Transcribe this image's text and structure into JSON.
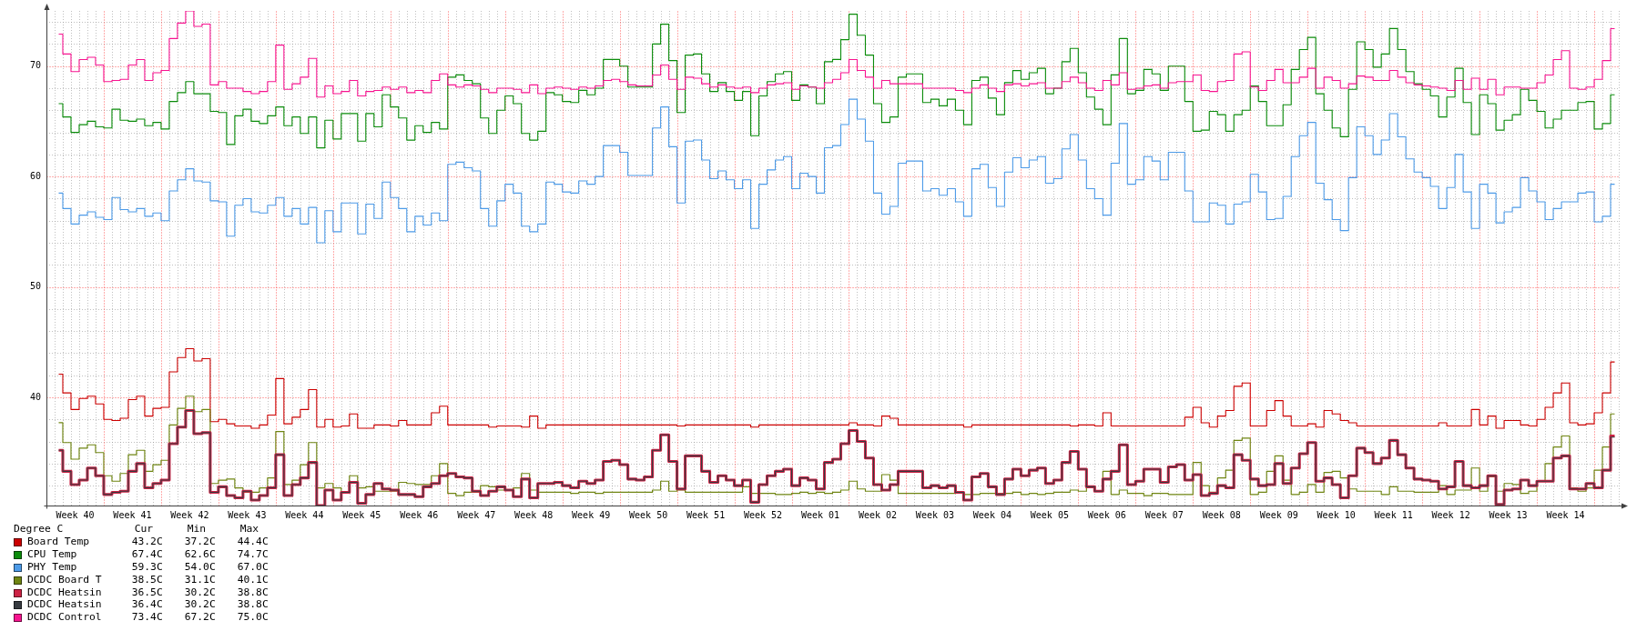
{
  "chart_data": {
    "type": "step",
    "legend_title": "Degree C",
    "legend": "bottom left",
    "grid": true,
    "ylim": [
      30.2,
      75
    ],
    "yticks": [
      {
        "value": 32,
        "label": null
      },
      {
        "value": 34,
        "label": null
      },
      {
        "value": 36,
        "label": null
      },
      {
        "value": 38,
        "label": null
      },
      40,
      {
        "value": 42,
        "label": null
      },
      {
        "value": 44,
        "label": null
      },
      {
        "value": 46,
        "label": null
      },
      {
        "value": 48,
        "label": null
      },
      50,
      {
        "value": 52,
        "label": null
      },
      {
        "value": 54,
        "label": null
      },
      {
        "value": 56,
        "label": null
      },
      {
        "value": 58,
        "label": null
      },
      60,
      {
        "value": 62,
        "label": null
      },
      {
        "value": 64,
        "label": null
      },
      {
        "value": 66,
        "label": null
      },
      {
        "value": 68,
        "label": null
      },
      70,
      {
        "value": 72,
        "label": null
      },
      {
        "value": 74,
        "label": null
      }
    ],
    "categories": [
      null,
      null,
      null,
      "Week 40",
      null,
      null,
      null,
      null,
      null,
      null,
      "Week 41",
      null,
      null,
      null,
      null,
      null,
      null,
      "Week 42",
      null,
      null,
      null,
      null,
      null,
      null,
      "Week 43",
      null,
      null,
      null,
      null,
      null,
      null,
      "Week 44",
      null,
      null,
      null,
      null,
      null,
      null,
      "Week 45",
      null,
      null,
      null,
      null,
      null,
      null,
      "Week 46",
      null,
      null,
      null,
      null,
      null,
      null,
      "Week 47",
      null,
      null,
      null,
      null,
      null,
      null,
      "Week 48",
      null,
      null,
      null,
      null,
      null,
      null,
      "Week 49",
      null,
      null,
      null,
      null,
      null,
      null,
      "Week 50",
      null,
      null,
      null,
      null,
      null,
      null,
      "Week 51",
      null,
      null,
      null,
      null,
      null,
      null,
      "Week 52",
      null,
      null,
      null,
      null,
      null,
      null,
      "Week 01",
      null,
      null,
      null,
      null,
      null,
      null,
      "Week 02",
      null,
      null,
      null,
      null,
      null,
      null,
      "Week 03",
      null,
      null,
      null,
      null,
      null,
      null,
      "Week 04",
      null,
      null,
      null,
      null,
      null,
      null,
      "Week 05",
      null,
      null,
      null,
      null,
      null,
      null,
      "Week 06",
      null,
      null,
      null,
      null,
      null,
      null,
      "Week 07",
      null,
      null,
      null,
      null,
      null,
      null,
      "Week 08",
      null,
      null,
      null,
      null,
      null,
      null,
      "Week 09",
      null,
      null,
      null,
      null,
      null,
      null,
      "Week 10",
      null,
      null,
      null,
      null,
      null,
      null,
      "Week 11",
      null,
      null,
      null,
      null,
      null,
      null,
      "Week 12",
      null,
      null,
      null,
      null,
      null,
      null,
      "Week 13",
      null,
      null,
      null,
      null,
      null,
      null,
      "Week 14",
      null,
      null,
      null,
      null,
      null,
      null
    ],
    "series": [
      {
        "name": "Board Temp",
        "color": "#cc0000",
        "values": [
          null,
          42.1,
          40.4,
          38.9,
          39.9,
          40.1,
          39.4,
          38.0,
          37.9,
          38.1,
          39.8,
          40.1,
          38.3,
          39.0,
          39.1,
          42.3,
          43.6,
          44.4,
          43.3,
          43.5,
          37.8,
          38.0,
          37.6,
          37.4,
          37.4,
          37.2,
          37.5,
          38.4,
          41.7,
          37.6,
          38.2,
          38.9,
          40.7,
          37.3,
          38.0,
          37.3,
          37.4,
          38.5,
          37.2,
          37.2,
          37.5,
          37.5,
          37.4,
          37.9,
          37.5,
          37.5,
          37.5,
          38.6,
          39.2,
          37.5,
          37.5,
          37.5,
          37.5,
          37.5,
          37.3,
          37.4,
          37.4,
          37.4,
          37.3,
          38.3,
          37.2,
          37.5,
          37.5,
          37.5,
          37.5,
          37.5,
          37.5,
          37.5,
          37.5,
          37.5,
          37.5,
          37.5,
          37.5,
          37.5,
          37.5,
          37.5,
          37.5,
          37.4,
          37.5,
          37.5,
          37.5,
          37.5,
          37.5,
          37.5,
          37.5,
          37.5,
          37.3,
          37.5,
          37.5,
          37.5,
          37.5,
          37.5,
          37.5,
          37.5,
          37.5,
          37.5,
          37.5,
          37.5,
          37.7,
          37.5,
          37.5,
          37.4,
          38.3,
          38.1,
          37.5,
          37.5,
          37.5,
          37.5,
          37.5,
          37.5,
          37.5,
          37.5,
          37.3,
          37.5,
          37.5,
          37.5,
          37.5,
          37.5,
          37.5,
          37.5,
          37.5,
          37.5,
          37.5,
          37.5,
          37.5,
          37.4,
          37.5,
          37.5,
          37.4,
          38.6,
          37.4,
          37.4,
          37.4,
          37.4,
          37.4,
          37.4,
          37.4,
          37.4,
          37.4,
          38.2,
          39.1,
          37.7,
          37.3,
          38.3,
          38.8,
          41.0,
          41.3,
          37.4,
          37.4,
          38.8,
          39.7,
          38.3,
          37.4,
          37.4,
          37.6,
          37.3,
          38.8,
          38.5,
          37.9,
          37.7,
          37.4,
          37.4,
          37.4,
          37.4,
          37.4,
          37.4,
          37.4,
          37.4,
          37.4,
          37.4,
          37.7,
          37.4,
          37.4,
          37.4,
          38.9,
          37.5,
          38.3,
          37.2,
          37.9,
          37.9,
          37.5,
          37.4,
          38.0,
          39.1,
          40.4,
          41.3,
          37.7,
          37.5,
          37.6,
          38.6,
          40.4,
          43.2
        ]
      },
      {
        "name": "CPU Temp",
        "color": "#0b8c0b",
        "values": [
          null,
          66.6,
          65.4,
          64.0,
          64.7,
          65.0,
          64.5,
          64.4,
          66.1,
          65.1,
          65.0,
          65.2,
          64.6,
          64.9,
          64.3,
          66.8,
          67.6,
          68.6,
          67.5,
          67.5,
          65.9,
          65.8,
          62.9,
          65.5,
          66.1,
          65.0,
          64.8,
          65.5,
          66.3,
          64.6,
          65.4,
          63.9,
          65.4,
          62.6,
          65.1,
          63.4,
          65.7,
          65.7,
          63.2,
          65.7,
          64.5,
          67.4,
          66.3,
          65.3,
          63.3,
          64.6,
          64.0,
          64.9,
          64.3,
          69.0,
          69.2,
          68.7,
          68.4,
          65.3,
          63.9,
          66.0,
          67.3,
          66.6,
          63.9,
          63.3,
          64.1,
          67.6,
          67.4,
          66.8,
          66.7,
          67.8,
          67.4,
          68.0,
          70.6,
          70.6,
          70.0,
          68.1,
          68.1,
          68.1,
          72.0,
          73.8,
          70.5,
          65.8,
          71.0,
          71.1,
          69.3,
          67.7,
          68.5,
          67.7,
          66.9,
          67.7,
          63.7,
          67.3,
          68.6,
          69.3,
          69.5,
          66.9,
          68.3,
          68.1,
          66.6,
          70.4,
          70.6,
          72.4,
          74.7,
          72.8,
          71.0,
          66.6,
          64.9,
          65.4,
          69.0,
          69.3,
          69.3,
          66.7,
          67.0,
          66.4,
          67.0,
          66.0,
          64.7,
          68.7,
          69.0,
          67.1,
          65.6,
          68.5,
          69.6,
          68.8,
          69.4,
          69.8,
          67.5,
          68.0,
          70.4,
          71.6,
          69.4,
          67.2,
          66.1,
          64.7,
          69.2,
          72.5,
          67.5,
          67.8,
          69.7,
          69.3,
          67.8,
          70.0,
          70.0,
          66.8,
          64.1,
          64.2,
          65.9,
          65.6,
          64.1,
          65.6,
          66.0,
          68.2,
          66.8,
          64.6,
          64.6,
          66.5,
          69.7,
          71.5,
          72.6,
          67.5,
          66.0,
          64.4,
          63.6,
          67.9,
          72.2,
          71.5,
          69.9,
          71.1,
          73.4,
          71.5,
          69.5,
          68.4,
          67.9,
          67.3,
          65.4,
          67.2,
          69.8,
          66.7,
          63.8,
          67.4,
          66.6,
          64.2,
          65.1,
          65.6,
          67.9,
          66.9,
          65.9,
          64.4,
          65.2,
          66.0,
          66.0,
          66.7,
          66.8,
          64.3,
          64.8,
          67.4
        ]
      },
      {
        "name": "PHY Temp",
        "color": "#4d9be8",
        "values": [
          null,
          58.5,
          57.1,
          55.7,
          56.5,
          56.8,
          56.3,
          56.1,
          58.1,
          57.0,
          56.8,
          57.1,
          56.4,
          56.7,
          56.0,
          58.7,
          59.7,
          60.7,
          59.6,
          59.5,
          57.8,
          57.7,
          54.6,
          57.4,
          58.0,
          56.8,
          56.7,
          57.4,
          58.1,
          56.4,
          57.1,
          55.7,
          57.2,
          54.0,
          56.9,
          55.0,
          57.6,
          57.6,
          54.8,
          57.5,
          56.2,
          59.5,
          58.1,
          57.1,
          55.0,
          56.4,
          55.6,
          56.7,
          56.0,
          61.1,
          61.3,
          60.8,
          60.5,
          57.1,
          55.5,
          57.8,
          59.3,
          58.5,
          55.5,
          55.0,
          55.7,
          59.5,
          59.3,
          58.6,
          58.5,
          59.6,
          59.3,
          60.0,
          62.8,
          62.8,
          62.2,
          60.1,
          60.1,
          60.1,
          64.4,
          66.3,
          62.7,
          57.6,
          63.2,
          63.3,
          61.5,
          59.8,
          60.5,
          59.7,
          58.9,
          59.7,
          55.3,
          59.3,
          60.6,
          61.5,
          61.8,
          58.9,
          60.3,
          60.0,
          58.5,
          62.6,
          62.8,
          64.7,
          67.0,
          65.2,
          63.2,
          58.5,
          56.6,
          57.3,
          61.2,
          61.4,
          61.4,
          58.7,
          58.9,
          58.3,
          58.9,
          57.7,
          56.4,
          60.7,
          61.1,
          59.0,
          57.3,
          60.4,
          61.7,
          60.8,
          61.5,
          61.8,
          59.4,
          59.8,
          62.5,
          63.8,
          61.5,
          58.9,
          58.0,
          56.5,
          61.2,
          64.8,
          59.3,
          59.7,
          61.8,
          61.4,
          59.7,
          62.2,
          62.2,
          58.7,
          55.9,
          55.9,
          57.6,
          57.4,
          55.7,
          57.5,
          57.7,
          60.2,
          58.6,
          56.1,
          56.2,
          58.2,
          61.8,
          63.7,
          64.9,
          59.4,
          57.9,
          56.1,
          55.1,
          59.9,
          64.5,
          63.7,
          62.0,
          63.3,
          65.7,
          63.6,
          61.6,
          60.4,
          59.9,
          59.1,
          57.1,
          59.0,
          62.0,
          58.6,
          55.3,
          59.3,
          58.5,
          55.8,
          56.8,
          57.2,
          59.9,
          58.7,
          57.7,
          56.1,
          57.1,
          57.7,
          57.7,
          58.5,
          58.6,
          55.9,
          56.4,
          59.3
        ]
      },
      {
        "name": "DCDC Board T",
        "color": "#6f8512",
        "values": [
          null,
          37.7,
          35.9,
          34.4,
          35.4,
          35.7,
          35.0,
          32.9,
          32.4,
          33.1,
          34.8,
          35.2,
          33.3,
          33.9,
          34.3,
          37.5,
          39.0,
          40.1,
          38.7,
          38.9,
          32.2,
          32.5,
          32.6,
          31.8,
          31.4,
          31.4,
          31.8,
          32.7,
          36.9,
          32.1,
          32.5,
          33.9,
          35.9,
          31.8,
          32.2,
          31.8,
          31.4,
          32.9,
          31.8,
          31.9,
          31.5,
          31.5,
          31.5,
          32.3,
          32.2,
          32.1,
          32.1,
          32.9,
          34.0,
          31.3,
          31.1,
          31.4,
          31.4,
          32.0,
          31.9,
          31.6,
          31.6,
          31.8,
          33.1,
          31.6,
          31.4,
          31.4,
          31.4,
          31.4,
          31.3,
          31.4,
          31.4,
          31.3,
          31.4,
          31.4,
          31.4,
          31.4,
          31.4,
          31.4,
          31.6,
          32.4,
          31.5,
          31.6,
          31.4,
          31.4,
          31.4,
          31.4,
          31.4,
          31.4,
          31.4,
          31.9,
          31.3,
          31.3,
          31.3,
          31.2,
          31.2,
          31.3,
          31.4,
          31.3,
          31.4,
          31.3,
          31.4,
          31.6,
          32.4,
          31.7,
          31.5,
          31.5,
          33.0,
          32.5,
          31.3,
          31.3,
          31.3,
          31.3,
          31.3,
          31.3,
          31.3,
          31.4,
          31.2,
          31.2,
          31.3,
          31.3,
          31.3,
          31.3,
          31.4,
          31.2,
          31.3,
          31.2,
          31.3,
          31.4,
          31.4,
          31.6,
          31.5,
          31.9,
          31.5,
          33.3,
          31.2,
          31.6,
          31.3,
          31.3,
          31.1,
          31.3,
          31.3,
          31.2,
          31.2,
          31.2,
          34.1,
          32.0,
          31.4,
          32.7,
          33.4,
          36.1,
          36.3,
          31.2,
          31.4,
          33.3,
          34.7,
          32.5,
          31.2,
          31.4,
          32.1,
          31.4,
          33.2,
          33.3,
          32.7,
          31.7,
          31.5,
          31.5,
          31.5,
          31.2,
          31.9,
          31.5,
          31.5,
          31.4,
          31.4,
          31.4,
          32.0,
          31.2,
          31.6,
          31.6,
          33.6,
          31.5,
          32.8,
          31.5,
          32.2,
          32.1,
          31.3,
          31.5,
          32.4,
          34.0,
          35.5,
          36.5,
          31.8,
          31.5,
          31.8,
          33.4,
          35.5,
          38.5
        ]
      },
      {
        "name": "DCDC Heatsin",
        "color": "#cc2244",
        "values": [
          null,
          35.2,
          33.3,
          32.1,
          32.5,
          33.6,
          32.9,
          31.2,
          31.4,
          31.5,
          33.3,
          34.0,
          31.8,
          32.2,
          32.5,
          35.8,
          37.3,
          38.8,
          36.7,
          36.8,
          31.4,
          31.9,
          31.1,
          30.9,
          31.5,
          30.7,
          31.1,
          31.8,
          34.8,
          31.1,
          32.1,
          32.7,
          34.1,
          30.2,
          31.6,
          30.7,
          31.4,
          32.3,
          30.4,
          31.2,
          32.2,
          31.7,
          31.6,
          31.2,
          31.2,
          31.0,
          31.9,
          32.2,
          32.9,
          33.1,
          32.8,
          32.7,
          31.5,
          31.1,
          31.5,
          31.9,
          31.6,
          31.0,
          32.6,
          30.9,
          32.2,
          32.2,
          32.3,
          32.0,
          31.8,
          32.4,
          32.2,
          32.5,
          34.2,
          34.3,
          33.9,
          32.6,
          32.5,
          32.8,
          35.2,
          36.6,
          34.2,
          31.7,
          34.7,
          34.7,
          33.3,
          32.3,
          32.9,
          32.5,
          32.0,
          32.5,
          30.5,
          32.1,
          32.9,
          33.3,
          33.5,
          32.0,
          32.7,
          32.5,
          31.7,
          34.1,
          34.4,
          35.8,
          37.0,
          36.0,
          34.5,
          32.1,
          31.6,
          32.1,
          33.3,
          33.3,
          33.3,
          31.8,
          32.0,
          31.8,
          32.0,
          31.4,
          30.7,
          32.8,
          33.1,
          31.9,
          31.2,
          32.6,
          33.5,
          32.9,
          33.4,
          33.6,
          32.2,
          32.5,
          34.1,
          35.1,
          33.5,
          31.9,
          31.5,
          32.6,
          33.3,
          35.7,
          32.1,
          32.4,
          33.5,
          33.5,
          32.3,
          33.7,
          33.9,
          32.5,
          33.0,
          31.1,
          31.3,
          32.0,
          31.8,
          34.8,
          34.3,
          32.6,
          32.0,
          32.1,
          34.0,
          32.2,
          33.6,
          34.9,
          35.9,
          32.4,
          32.7,
          32.1,
          30.9,
          32.9,
          35.4,
          35.0,
          34.0,
          34.5,
          36.1,
          34.8,
          33.6,
          32.6,
          32.5,
          32.4,
          31.7,
          31.9,
          34.2,
          32.0,
          31.8,
          32.0,
          32.9,
          30.3,
          31.6,
          31.7,
          32.5,
          32.0,
          32.4,
          32.4,
          34.5,
          34.7,
          31.7,
          31.7,
          32.2,
          31.8,
          33.4,
          36.5
        ]
      },
      {
        "name": "DCDC Heatsin",
        "color": "#373b41",
        "values": [
          null,
          35.2,
          33.3,
          32.1,
          32.5,
          33.6,
          32.9,
          31.2,
          31.4,
          31.5,
          33.3,
          34.0,
          31.8,
          32.2,
          32.5,
          35.8,
          37.3,
          38.8,
          36.7,
          36.8,
          31.4,
          31.9,
          31.1,
          30.9,
          31.5,
          30.7,
          31.1,
          31.8,
          34.8,
          31.1,
          32.1,
          32.7,
          34.1,
          30.2,
          31.6,
          30.7,
          31.4,
          32.3,
          30.4,
          31.2,
          32.2,
          31.7,
          31.6,
          31.2,
          31.2,
          31.0,
          31.9,
          32.2,
          32.9,
          33.1,
          32.8,
          32.7,
          31.5,
          31.1,
          31.5,
          31.9,
          31.6,
          31.0,
          32.6,
          30.9,
          32.2,
          32.2,
          32.3,
          32.0,
          31.8,
          32.4,
          32.2,
          32.5,
          34.2,
          34.3,
          33.9,
          32.6,
          32.5,
          32.8,
          35.2,
          36.6,
          34.2,
          31.7,
          34.7,
          34.7,
          33.3,
          32.3,
          32.9,
          32.5,
          32.0,
          32.5,
          30.5,
          32.1,
          32.9,
          33.3,
          33.5,
          32.0,
          32.7,
          32.5,
          31.7,
          34.1,
          34.4,
          35.8,
          37.0,
          36.0,
          34.5,
          32.1,
          31.6,
          32.1,
          33.3,
          33.3,
          33.3,
          31.8,
          32.0,
          31.8,
          32.0,
          31.4,
          30.7,
          32.8,
          33.1,
          31.9,
          31.2,
          32.6,
          33.5,
          32.9,
          33.4,
          33.6,
          32.2,
          32.5,
          34.1,
          35.1,
          33.5,
          31.9,
          31.5,
          32.6,
          33.3,
          35.7,
          32.1,
          32.4,
          33.5,
          33.5,
          32.3,
          33.7,
          33.9,
          32.5,
          33.0,
          31.1,
          31.3,
          32.0,
          31.8,
          34.8,
          34.3,
          32.6,
          32.0,
          32.1,
          34.0,
          32.2,
          33.6,
          34.9,
          35.9,
          32.4,
          32.7,
          32.1,
          30.9,
          32.9,
          35.4,
          35.0,
          34.0,
          34.5,
          36.1,
          34.8,
          33.6,
          32.6,
          32.5,
          32.4,
          31.7,
          31.9,
          34.2,
          32.0,
          31.8,
          32.0,
          32.9,
          30.3,
          31.6,
          31.7,
          32.5,
          32.0,
          32.4,
          32.4,
          34.5,
          34.7,
          31.7,
          31.7,
          32.2,
          31.8,
          33.4,
          36.4
        ]
      },
      {
        "name": "DCDC Control",
        "color": "#f71490",
        "values": [
          null,
          72.9,
          71.1,
          69.5,
          70.6,
          70.8,
          70.1,
          68.6,
          68.7,
          68.8,
          70.1,
          70.6,
          68.7,
          69.4,
          69.6,
          72.5,
          73.9,
          75.0,
          73.6,
          73.8,
          68.3,
          68.6,
          68.0,
          68.0,
          67.7,
          67.5,
          67.7,
          68.6,
          71.9,
          67.9,
          68.4,
          69.0,
          70.7,
          67.2,
          68.2,
          67.5,
          67.7,
          68.7,
          67.3,
          67.7,
          67.8,
          68.1,
          67.9,
          68.1,
          67.6,
          67.8,
          67.6,
          68.7,
          69.3,
          68.3,
          68.1,
          68.3,
          68.2,
          67.9,
          67.6,
          68.0,
          68.0,
          67.9,
          67.6,
          68.3,
          67.5,
          68.0,
          68.1,
          68.0,
          67.9,
          68.1,
          68.0,
          68.2,
          68.7,
          68.8,
          68.6,
          68.3,
          68.2,
          68.2,
          69.2,
          70.1,
          68.8,
          67.9,
          69.0,
          68.9,
          68.4,
          68.1,
          68.3,
          68.1,
          68.0,
          68.1,
          67.6,
          68.0,
          68.3,
          68.4,
          68.5,
          67.9,
          68.2,
          68.1,
          68.0,
          68.5,
          68.8,
          69.4,
          70.6,
          69.6,
          69.0,
          68.0,
          68.7,
          68.4,
          68.4,
          68.4,
          68.4,
          68.0,
          68.0,
          68.0,
          68.0,
          67.8,
          67.6,
          68.0,
          68.3,
          68.0,
          67.7,
          68.3,
          68.4,
          68.2,
          68.4,
          68.5,
          68.0,
          68.0,
          68.6,
          69.0,
          68.5,
          68.0,
          67.8,
          68.7,
          68.3,
          69.4,
          67.9,
          68.0,
          68.2,
          68.3,
          68.0,
          68.5,
          68.6,
          68.6,
          69.2,
          67.8,
          67.7,
          68.6,
          68.7,
          71.1,
          71.3,
          68.1,
          67.8,
          68.7,
          69.7,
          68.5,
          68.5,
          69.0,
          69.8,
          68.0,
          69.0,
          68.7,
          68.0,
          68.4,
          69.1,
          69.0,
          68.7,
          68.7,
          69.6,
          69.0,
          68.5,
          68.3,
          68.2,
          68.1,
          68.0,
          67.8,
          68.7,
          67.9,
          68.9,
          67.9,
          68.8,
          67.4,
          68.1,
          68.1,
          68.0,
          68.0,
          68.5,
          69.2,
          70.6,
          71.4,
          68.0,
          67.9,
          68.1,
          68.8,
          70.5,
          73.4
        ]
      }
    ],
    "annotations": [
      "Cur",
      "Min",
      "Max",
      "43.2C",
      "37.2C",
      "44.4C",
      "67.4C",
      "62.6C",
      "74.7C",
      "59.3C",
      "54.0C",
      "67.0C",
      "38.5C",
      "31.1C",
      "40.1C",
      "36.5C",
      "30.2C",
      "38.8C",
      "36.4C",
      "30.2C",
      "38.8C",
      "73.4C",
      "67.2C",
      "75.0C"
    ]
  }
}
